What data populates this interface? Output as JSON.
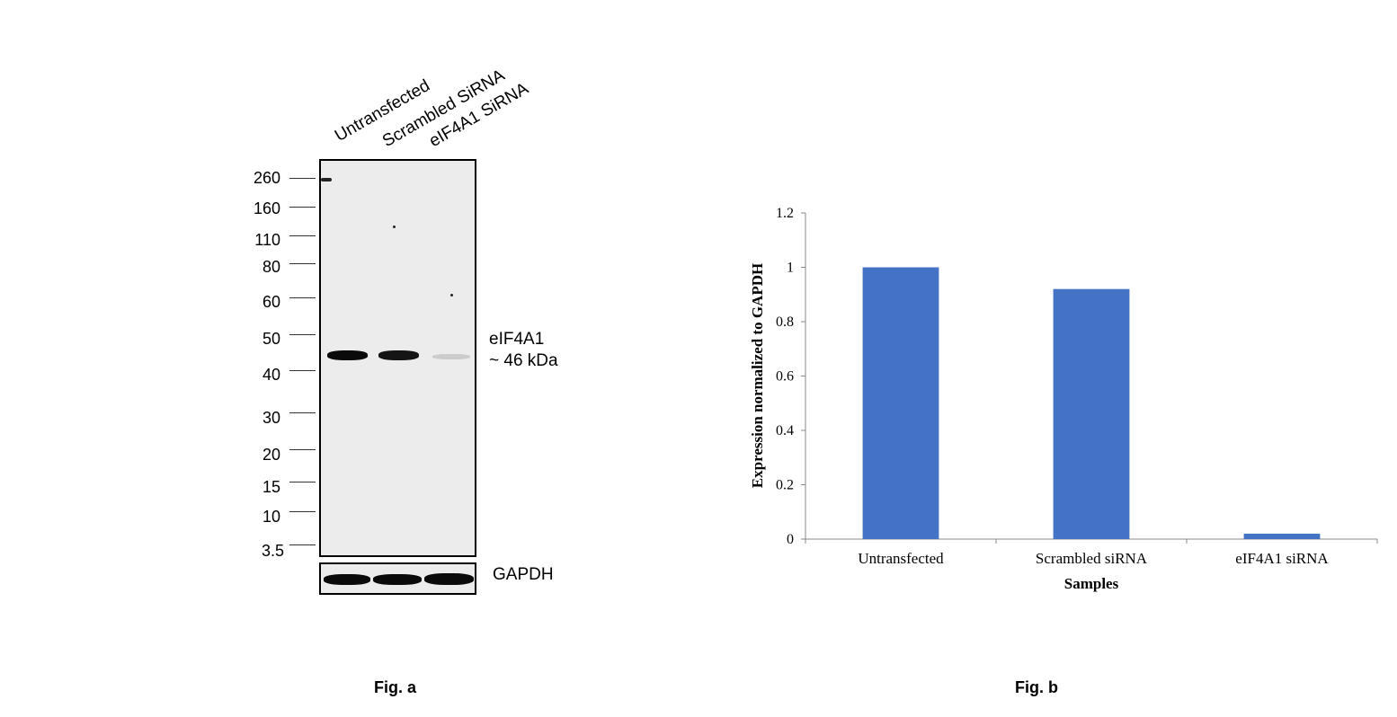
{
  "figure_a": {
    "caption": "Fig. a",
    "lane_labels": [
      "Untransfected",
      "Scrambled SiRNA",
      "eIF4A1 SiRNA"
    ],
    "mw_markers": [
      "260",
      "160",
      "110",
      "80",
      "60",
      "50",
      "40",
      "30",
      "20",
      "15",
      "10",
      "3.5"
    ],
    "target_label_line1": "eIF4A1",
    "target_label_line2": "~ 46 kDa",
    "loading_control_label": "GAPDH",
    "band_intensity": {
      "eIF4A1": [
        1.0,
        0.95,
        0.12
      ],
      "GAPDH": [
        1.0,
        1.0,
        1.0
      ]
    }
  },
  "figure_b": {
    "caption": "Fig. b"
  },
  "chart_data": {
    "type": "bar",
    "categories": [
      "Untransfected",
      "Scrambled siRNA",
      "eIF4A1 siRNA"
    ],
    "values": [
      1.0,
      0.92,
      0.02
    ],
    "title": "",
    "xlabel": "Samples",
    "ylabel": "Expression normalized to GAPDH",
    "ylim": [
      0,
      1.2
    ],
    "yticks": [
      "0",
      "0.2",
      "0.4",
      "0.6",
      "0.8",
      "1",
      "1.2"
    ],
    "grid": false,
    "bar_color": "#4472C4"
  }
}
